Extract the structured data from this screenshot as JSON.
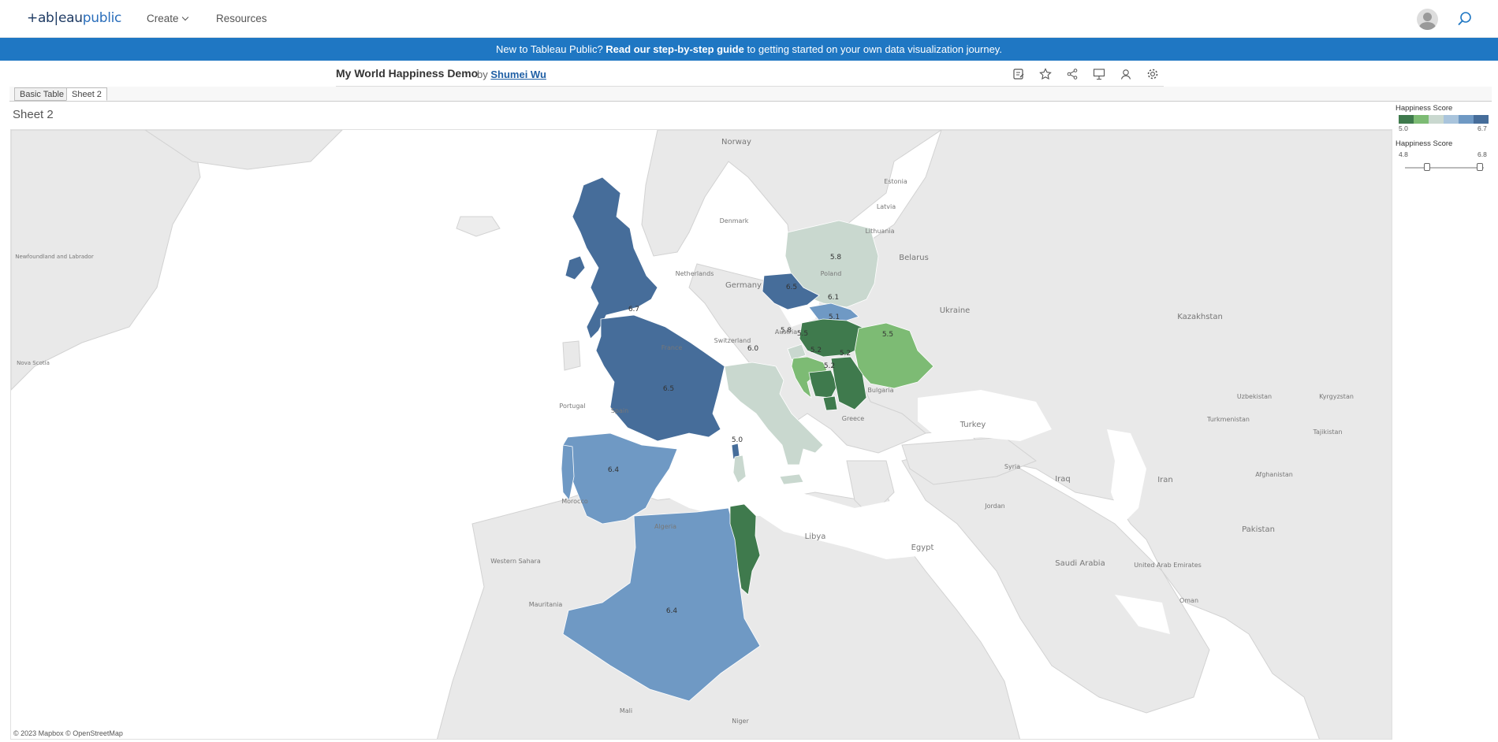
{
  "nav": {
    "logo_prefix": "+ab|eau",
    "logo_suffix": "public",
    "create": "Create",
    "resources": "Resources"
  },
  "banner": {
    "lead": "New to Tableau Public? ",
    "link": "Read our step-by-step guide",
    "tail": " to getting started on your own data visualization journey."
  },
  "viz": {
    "title": "My World Happiness Demo",
    "by": "by",
    "author": "Shumei Wu"
  },
  "tabs": [
    "Basic Table",
    "Sheet 2"
  ],
  "sheet_title": "Sheet 2",
  "attribution": "© 2023 Mapbox  © OpenStreetMap",
  "legend": {
    "title": "Happiness Score",
    "min": "5.0",
    "max": "6.7",
    "colors": [
      "#3f7a4d",
      "#7dbb74",
      "#c9d8cf",
      "#a9c4dc",
      "#6f99c4",
      "#466d9a"
    ]
  },
  "filter": {
    "title": "Happiness Score",
    "min": "4.8",
    "max": "6.8",
    "range_low_fraction": 0.28,
    "range_high_fraction": 0.95
  },
  "map_labels": {
    "countries": [
      "Norway",
      "Estonia",
      "Latvia",
      "Lithuania",
      "Denmark",
      "Belarus",
      "Netherlands",
      "Germany",
      "Ukraine",
      "Kazakhstan",
      "Austria",
      "Switzerland",
      "Bulgaria",
      "Greece",
      "Turkey",
      "Uzbekistan",
      "Kyrgyzstan",
      "Turkmenistan",
      "Tajikistan",
      "Afghanistan",
      "Iraq",
      "Iran",
      "Jordan",
      "Syria",
      "Saudi Arabia",
      "United Arab Emirates",
      "Oman",
      "Pakistan",
      "Libya",
      "Egypt",
      "Morocco",
      "Western Sahara",
      "Mauritania",
      "Mali",
      "Niger",
      "Portugal",
      "Spain",
      "France",
      "Poland",
      "Algeria",
      "Newfoundland and Labrador",
      "Nova Scotia"
    ],
    "values": [
      {
        "country": "United Kingdom",
        "score": "6.7"
      },
      {
        "country": "France",
        "score": "6.5"
      },
      {
        "country": "Spain",
        "score": "6.4"
      },
      {
        "country": "Algeria",
        "score": "6.4"
      },
      {
        "country": "Czechia",
        "score": "6.5"
      },
      {
        "country": "Poland",
        "score": "5.8"
      },
      {
        "country": "Slovakia",
        "score": "6.1"
      },
      {
        "country": "Hungary",
        "score": "5.1"
      },
      {
        "country": "Romania",
        "score": "5.5"
      },
      {
        "country": "Italy",
        "score": "6.0"
      },
      {
        "country": "Slovenia",
        "score": "5.8"
      },
      {
        "country": "Croatia",
        "score": "5.5"
      },
      {
        "country": "Bosnia and Herzegovina",
        "score": "5.2"
      },
      {
        "country": "Serbia",
        "score": "5.2"
      },
      {
        "country": "Montenegro",
        "score": "5.2"
      },
      {
        "country": "Tunisia",
        "score": "5.0"
      }
    ]
  }
}
